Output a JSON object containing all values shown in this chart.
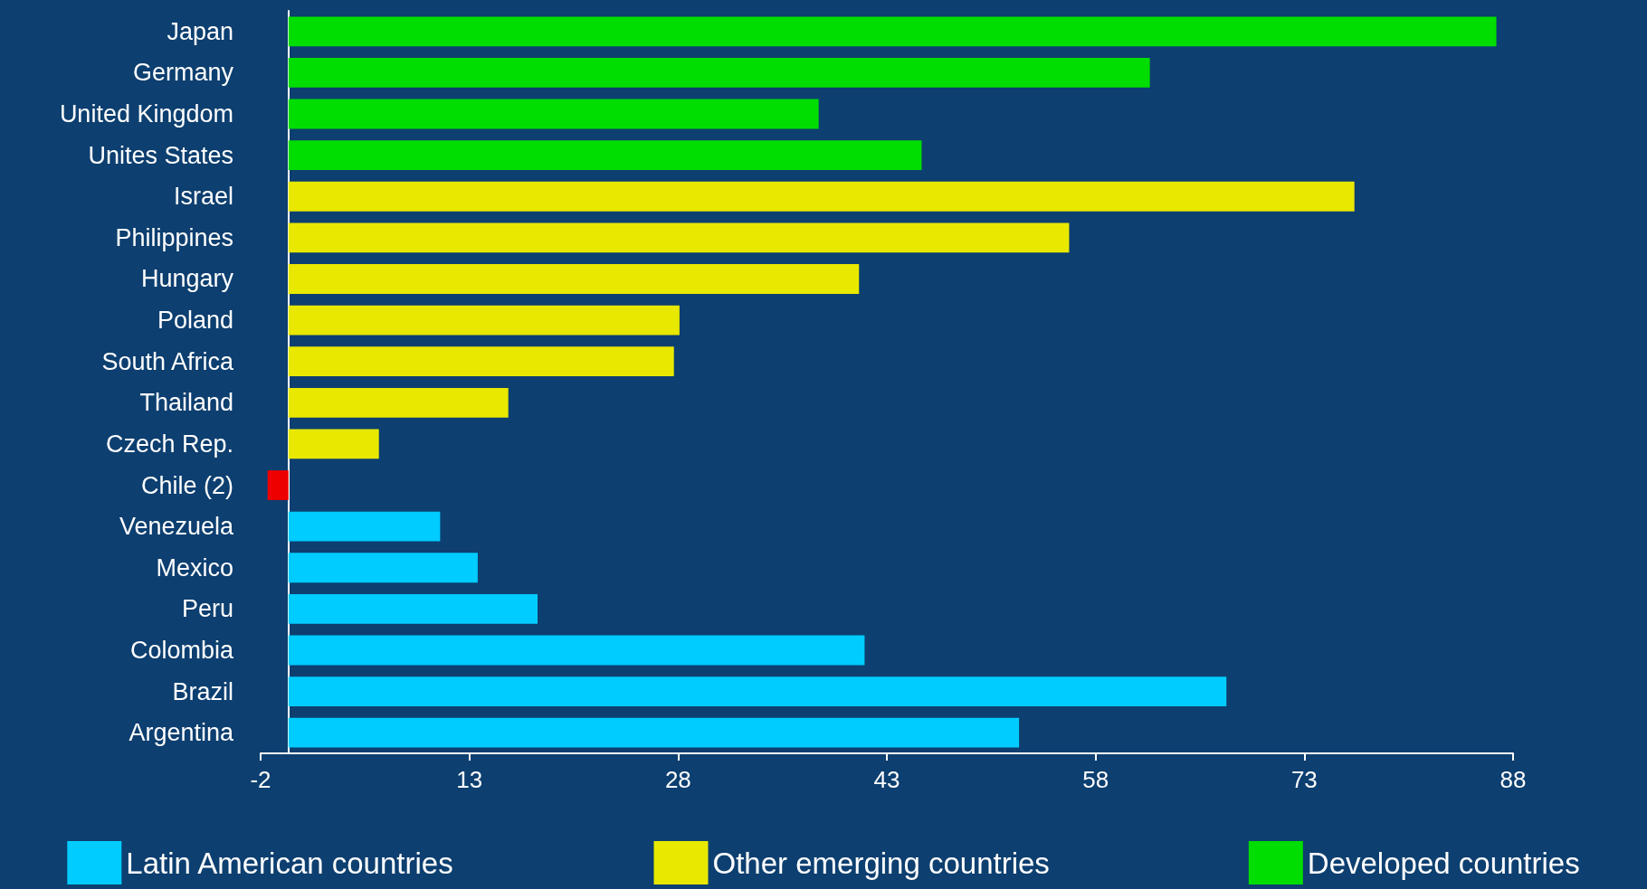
{
  "chart_data": {
    "type": "bar",
    "orientation": "horizontal",
    "stacked": true,
    "categories": [
      "Japan",
      "Germany",
      "United Kingdom",
      "Unites States",
      "Israel",
      "Philippines",
      "Hungary",
      "Poland",
      "South Africa",
      "Thailand",
      "Czech Rep.",
      "Chile (2)",
      "Venezuela",
      "Mexico",
      "Peru",
      "Colombia",
      "Brazil",
      "Argentina"
    ],
    "series": [
      {
        "name": "Latin American countries",
        "color": "#00ccff",
        "values": [
          null,
          null,
          null,
          null,
          null,
          null,
          null,
          null,
          null,
          null,
          null,
          null,
          10.9,
          13.6,
          17.9,
          41.4,
          67.4,
          52.5
        ]
      },
      {
        "name": "Other emerging countries",
        "color": "#e8e800",
        "values": [
          null,
          null,
          null,
          null,
          76.6,
          56.1,
          41.0,
          28.1,
          27.7,
          15.8,
          6.5,
          null,
          null,
          null,
          null,
          null,
          null,
          null
        ]
      },
      {
        "name": "Developed countries",
        "color": "#00dd00",
        "values": [
          86.8,
          61.9,
          38.1,
          45.5,
          null,
          null,
          null,
          null,
          null,
          null,
          null,
          null,
          null,
          null,
          null,
          null,
          null,
          null
        ]
      },
      {
        "color": "#ee0000",
        "values": [
          null,
          null,
          null,
          null,
          null,
          null,
          null,
          null,
          null,
          null,
          null,
          -1.5,
          null,
          null,
          null,
          null,
          null,
          null
        ]
      }
    ],
    "xlim": [
      -2,
      88
    ],
    "xticks": [
      -2,
      13,
      28,
      43,
      58,
      73,
      88
    ],
    "grid": false,
    "legend": "bottom"
  }
}
